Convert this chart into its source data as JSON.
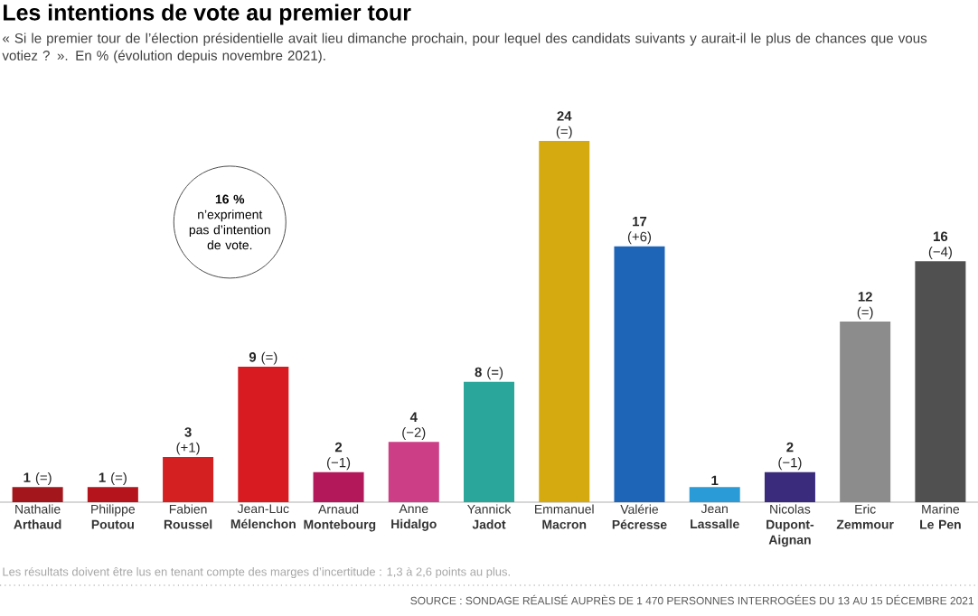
{
  "chart_data": {
    "type": "bar",
    "title": "Les intentions de vote au premier tour",
    "subtitle": "« Si le premier tour de l’élection présidentielle avait lieu dimanche prochain, pour lequel des candidats suivants y aurait-il le plus de chances que vous votiez ? ». En % (évolution depuis novembre 2021).",
    "categories": [
      "Nathalie **Arthaud**",
      "Philippe **Poutou**",
      "Fabien **Roussel**",
      "Jean-Luc **Mélenchon**",
      "Arnaud **Montebourg**",
      "Anne **Hidalgo**",
      "Yannick **Jadot**",
      "Emmanuel **Macron**",
      "Valérie **Pécresse**",
      "Jean **Lassalle**",
      "Nicolas **Dupont-Aignan**",
      "Eric **Zemmour**",
      "Marine **Le Pen**"
    ],
    "values": [
      1,
      1,
      3,
      9,
      2,
      4,
      8,
      24,
      17,
      1,
      2,
      12,
      16
    ],
    "value_labels": [
      "**1** (=)",
      "**1** (=)",
      "**3** (+1)",
      "**9** (=)",
      "**2** (−1)",
      "**4** (−2)",
      "**8** (=)",
      "**24** (=)",
      "**17** (+6)",
      "**1**",
      "**2** (−1)",
      "**12** (=)",
      "**16** (−4)"
    ],
    "colors": [
      "#a3161c",
      "#b5141c",
      "#d42021",
      "#d71b20",
      "#b2185a",
      "#cc3f86",
      "#2aa69a",
      "#d5aa10",
      "#1e65b8",
      "#2a9bd7",
      "#3b2b7d",
      "#8c8c8c",
      "#505050"
    ],
    "annotations": [
      "**16 %** n’expriment pas d’intention de vote.",
      "Les résultats doivent être lus en tenant compte des marges d’incertitude : 1,3 à 2,6 points au plus.",
      "SOURCE : SONDAGE RÉALISÉ AUPRÈS DE 1 470 PERSONNES INTERROGÉES DU 13 AU 15 DÉCEMBRE 2021"
    ]
  }
}
